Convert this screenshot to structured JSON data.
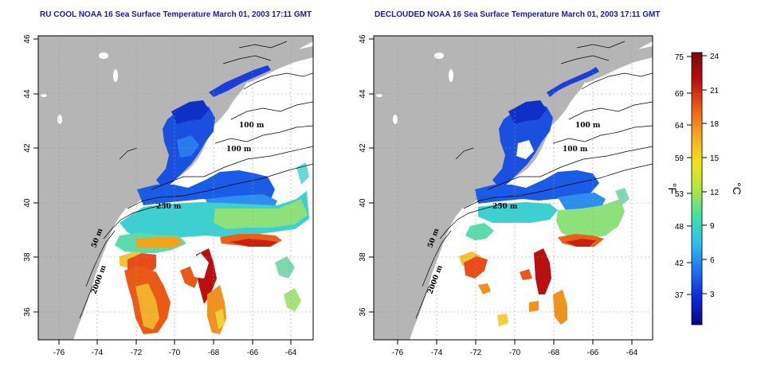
{
  "panels": [
    {
      "id": "left",
      "title": "RU COOL NOAA 16 Sea Surface Temperature March 01, 2003 17:11 GMT",
      "contour_labels": [
        "100 m",
        "100 m",
        "250 m",
        "50 m",
        "2000 m"
      ]
    },
    {
      "id": "right",
      "title": "DECLOUDED NOAA 16 Sea Surface Temperature March 01, 2003 17:11 GMT",
      "contour_labels": [
        "100 m",
        "100 m",
        "250 m",
        "50 m",
        "2000 m"
      ]
    }
  ],
  "axes": {
    "lon_ticks": [
      "-76",
      "-74",
      "-72",
      "-70",
      "-68",
      "-66",
      "-64"
    ],
    "lat_ticks": [
      "36",
      "38",
      "40",
      "42",
      "44",
      "46"
    ]
  },
  "colorbar": {
    "fahrenheit_ticks": [
      "75",
      "69",
      "64",
      "59",
      "53",
      "48",
      "42",
      "37"
    ],
    "celsius_ticks": [
      "24",
      "21",
      "18",
      "15",
      "12",
      "9",
      "6",
      "3"
    ],
    "fahrenheit_label": "°F",
    "celsius_label": "°C",
    "colors": [
      "#06068a",
      "#0a2ad8",
      "#1f74ef",
      "#2cc0ef",
      "#43e0a6",
      "#b2e63c",
      "#f2e21c",
      "#f4a51f",
      "#ea5a16",
      "#b80f0f",
      "#7a0707"
    ]
  },
  "colors": {
    "land": "#b5b5b5",
    "sea": "#ffffff",
    "title": "#1a1a9a",
    "grid": "#9a9a9a"
  }
}
